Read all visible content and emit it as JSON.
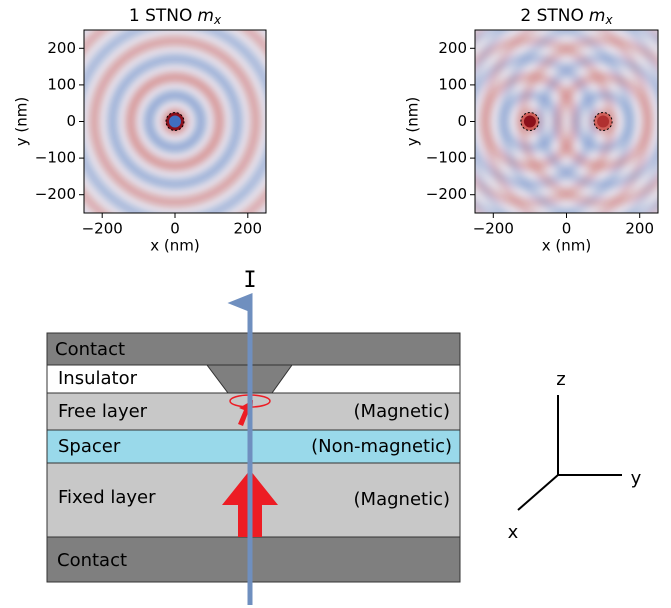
{
  "chart_data": [
    {
      "type": "heatmap",
      "title": "1 STNO",
      "title_symbol": "m",
      "title_subscript": "x",
      "x_label": "x (nm)",
      "y_label": "y (nm)",
      "xlim": [
        -250,
        250
      ],
      "ylim": [
        -250,
        250
      ],
      "xticks": [
        {
          "value": -200,
          "label": "−200"
        },
        0,
        200
      ],
      "yticks": [
        {
          "value": -200,
          "label": "−200"
        },
        {
          "value": -100,
          "label": "−100"
        },
        0,
        100,
        200
      ]
    },
    {
      "type": "heatmap",
      "title": "2 STNO",
      "title_symbol": "m",
      "title_subscript": "x",
      "x_label": "x (nm)",
      "y_label": "y (nm)",
      "xlim": [
        -250,
        250
      ],
      "ylim": [
        -250,
        250
      ],
      "xticks": [
        {
          "value": -200,
          "label": "−200"
        },
        0,
        200
      ],
      "yticks": [
        {
          "value": -200,
          "label": "−200"
        },
        {
          "value": -100,
          "label": "−100"
        },
        0,
        100,
        200
      ]
    }
  ],
  "diagram": {
    "current_label": "I",
    "layers": {
      "top_contact": "Contact",
      "insulator": "Insulator",
      "free_layer": "Free layer",
      "free_layer_note": "(Magnetic)",
      "spacer": "Spacer",
      "spacer_note": "(Non-magnetic)",
      "fixed_layer": "Fixed layer",
      "fixed_layer_note": "(Magnetic)",
      "bottom_contact": "Contact"
    },
    "axes": {
      "z": "z",
      "y": "y",
      "x": "x"
    }
  }
}
